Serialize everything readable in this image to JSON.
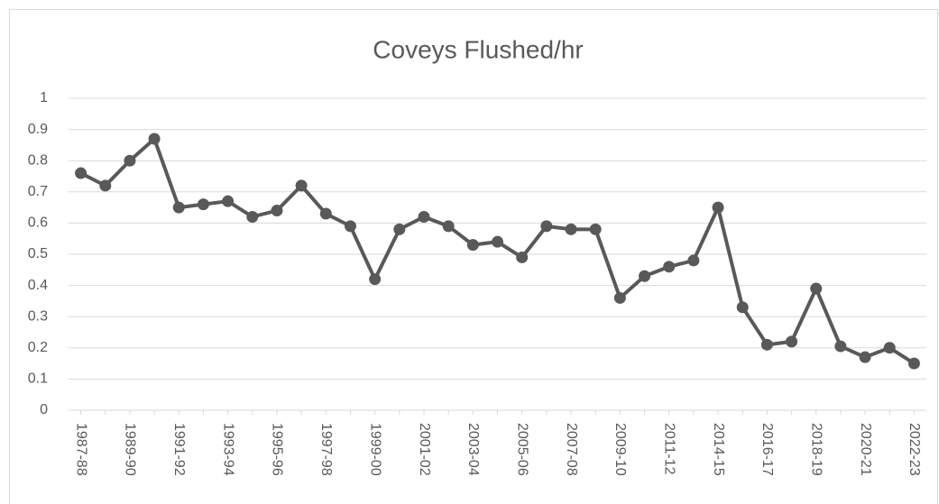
{
  "chart_data": {
    "type": "line",
    "title": "Coveys Flushed/hr",
    "categories": [
      "1987-88",
      null,
      "1989-90",
      null,
      "1991-92",
      null,
      "1993-94",
      null,
      "1995-96",
      null,
      "1997-98",
      null,
      "1999-00",
      null,
      "2001-02",
      null,
      "2003-04",
      null,
      "2005-06",
      null,
      "2007-08",
      null,
      "2009-10",
      null,
      "2011-12",
      null,
      "2014-15",
      null,
      "2016-17",
      null,
      "2018-19",
      null,
      "2020-21",
      null,
      "2022-23"
    ],
    "series": [
      {
        "name": "Coveys Flushed/hr",
        "color": "#595959",
        "values": [
          0.76,
          0.72,
          0.8,
          0.87,
          0.65,
          0.66,
          0.67,
          0.62,
          0.64,
          0.72,
          0.63,
          0.59,
          0.42,
          0.58,
          0.62,
          0.59,
          0.53,
          0.54,
          0.49,
          0.59,
          0.58,
          0.58,
          0.36,
          0.43,
          0.46,
          0.48,
          0.65,
          0.33,
          0.21,
          0.22,
          0.39,
          0.205,
          0.17,
          0.2,
          0.15
        ]
      }
    ],
    "ylim": [
      0,
      1
    ],
    "yticks": [
      0,
      0.1,
      0.2,
      0.3,
      0.4,
      0.5,
      0.6,
      0.7,
      0.8,
      0.9,
      1
    ],
    "grid": true
  }
}
